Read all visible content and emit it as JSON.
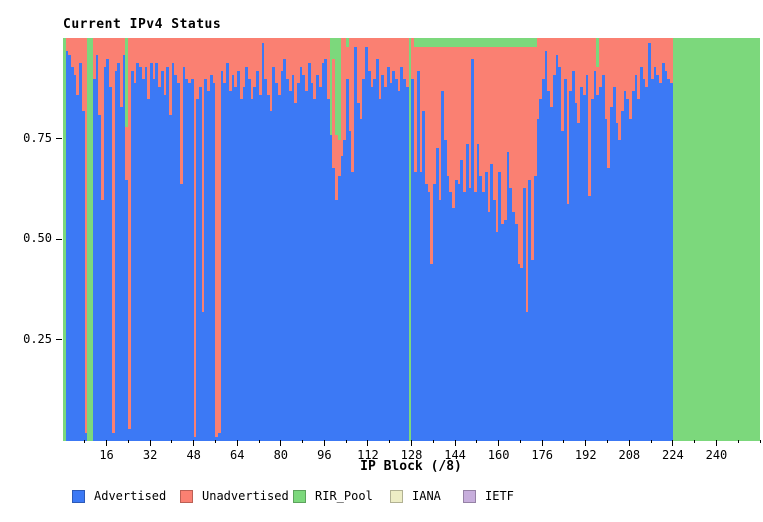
{
  "title": "Current IPv4 Status",
  "colors": {
    "advertised": "#3c79f5",
    "unadvertised": "#fa8072",
    "rir_pool": "#7cd87c",
    "iana": "#ededc5",
    "ietf": "#c7aedc",
    "plot_top_border": "#c9c3da",
    "background": "#ffffff",
    "text": "#000000"
  },
  "legend": [
    {
      "label": "Advertised",
      "color": "#3c79f5"
    },
    {
      "label": "Unadvertised",
      "color": "#fa8072"
    },
    {
      "label": "RIR_Pool",
      "color": "#7cd87c"
    },
    {
      "label": "IANA",
      "color": "#ededc5"
    },
    {
      "label": "IETF",
      "color": "#c7aedc"
    }
  ],
  "chart_data": {
    "type": "bar",
    "stacked": true,
    "title": "Current IPv4 Status",
    "xlabel": "IP Block (/8)",
    "ylabel": "",
    "x_range": [
      0,
      256
    ],
    "y_range": [
      0,
      1
    ],
    "grid": false,
    "legend_position": "bottom",
    "x_tick_values": [
      16,
      32,
      48,
      64,
      80,
      96,
      112,
      128,
      144,
      160,
      176,
      192,
      208,
      224,
      240
    ],
    "x_tick_labels": [
      "16",
      "32",
      "48",
      "64",
      "80",
      "96",
      "112",
      "128",
      "144",
      "160",
      "176",
      "192",
      "208",
      "224",
      "240"
    ],
    "x_minor_tick_values": [
      8,
      24,
      40,
      56,
      72,
      88,
      104,
      120,
      136,
      152,
      168,
      184,
      200,
      216,
      232,
      248,
      256
    ],
    "y_tick_values": [
      0.25,
      0.5,
      0.75
    ],
    "y_tick_labels": [
      "0.25",
      "0.50",
      "0.75"
    ],
    "series_order": [
      "advertised",
      "unadvertised",
      "rir_pool"
    ],
    "note_series_with_zero_visible_area": [
      "iana",
      "ietf"
    ],
    "blocks": [
      [
        0,
        0,
        1
      ],
      [
        0.97,
        0.03,
        0
      ],
      [
        0.96,
        0.04,
        0
      ],
      [
        0.93,
        0.07,
        0
      ],
      [
        0.91,
        0.09,
        0
      ],
      [
        0.86,
        0.14,
        0
      ],
      [
        0.94,
        0.06,
        0
      ],
      [
        0.82,
        0.18,
        0
      ],
      [
        0.02,
        0.98,
        0
      ],
      [
        0,
        0,
        1
      ],
      [
        0,
        0,
        1
      ],
      [
        0.9,
        0.1,
        0
      ],
      [
        0.96,
        0.04,
        0
      ],
      [
        0.81,
        0.19,
        0
      ],
      [
        0.6,
        0.4,
        0
      ],
      [
        0.93,
        0.07,
        0
      ],
      [
        0.95,
        0.05,
        0
      ],
      [
        0.88,
        0.12,
        0
      ],
      [
        0.02,
        0.98,
        0
      ],
      [
        0.92,
        0.08,
        0
      ],
      [
        0.94,
        0.06,
        0
      ],
      [
        0.83,
        0.17,
        0
      ],
      [
        0.96,
        0.04,
        0
      ],
      [
        0.65,
        0.13,
        0.22
      ],
      [
        0.03,
        0.97,
        0
      ],
      [
        0.92,
        0.08,
        0
      ],
      [
        0.89,
        0.11,
        0
      ],
      [
        0.94,
        0.06,
        0
      ],
      [
        0.93,
        0.07,
        0
      ],
      [
        0.9,
        0.1,
        0
      ],
      [
        0.93,
        0.07,
        0
      ],
      [
        0.85,
        0.15,
        0
      ],
      [
        0.94,
        0.06,
        0
      ],
      [
        0.9,
        0.1,
        0
      ],
      [
        0.94,
        0.06,
        0
      ],
      [
        0.88,
        0.12,
        0
      ],
      [
        0.92,
        0.08,
        0
      ],
      [
        0.86,
        0.14,
        0
      ],
      [
        0.93,
        0.07,
        0
      ],
      [
        0.81,
        0.19,
        0
      ],
      [
        0.94,
        0.06,
        0
      ],
      [
        0.91,
        0.09,
        0
      ],
      [
        0.89,
        0.11,
        0
      ],
      [
        0.64,
        0.36,
        0
      ],
      [
        0.93,
        0.07,
        0
      ],
      [
        0.9,
        0.1,
        0
      ],
      [
        0.89,
        0.11,
        0
      ],
      [
        0.9,
        0.1,
        0
      ],
      [
        0.01,
        0.99,
        0
      ],
      [
        0.85,
        0.15,
        0
      ],
      [
        0.88,
        0.12,
        0
      ],
      [
        0.32,
        0.68,
        0
      ],
      [
        0.9,
        0.1,
        0
      ],
      [
        0.87,
        0.13,
        0
      ],
      [
        0.91,
        0.09,
        0
      ],
      [
        0.89,
        0.11,
        0
      ],
      [
        0.01,
        0.99,
        0
      ],
      [
        0.02,
        0.98,
        0
      ],
      [
        0.92,
        0.08,
        0
      ],
      [
        0.89,
        0.11,
        0
      ],
      [
        0.94,
        0.06,
        0
      ],
      [
        0.87,
        0.13,
        0
      ],
      [
        0.91,
        0.09,
        0
      ],
      [
        0.88,
        0.12,
        0
      ],
      [
        0.92,
        0.08,
        0
      ],
      [
        0.85,
        0.15,
        0
      ],
      [
        0.88,
        0.12,
        0
      ],
      [
        0.93,
        0.07,
        0
      ],
      [
        0.9,
        0.1,
        0
      ],
      [
        0.85,
        0.15,
        0
      ],
      [
        0.88,
        0.12,
        0
      ],
      [
        0.92,
        0.08,
        0
      ],
      [
        0.86,
        0.14,
        0
      ],
      [
        0.99,
        0.01,
        0
      ],
      [
        0.9,
        0.1,
        0
      ],
      [
        0.86,
        0.14,
        0
      ],
      [
        0.82,
        0.18,
        0
      ],
      [
        0.93,
        0.07,
        0
      ],
      [
        0.89,
        0.11,
        0
      ],
      [
        0.86,
        0.14,
        0
      ],
      [
        0.92,
        0.08,
        0
      ],
      [
        0.95,
        0.05,
        0
      ],
      [
        0.9,
        0.1,
        0
      ],
      [
        0.87,
        0.13,
        0
      ],
      [
        0.91,
        0.09,
        0
      ],
      [
        0.84,
        0.16,
        0
      ],
      [
        0.89,
        0.11,
        0
      ],
      [
        0.93,
        0.07,
        0
      ],
      [
        0.91,
        0.09,
        0
      ],
      [
        0.87,
        0.13,
        0
      ],
      [
        0.94,
        0.06,
        0
      ],
      [
        0.89,
        0.11,
        0
      ],
      [
        0.85,
        0.15,
        0
      ],
      [
        0.91,
        0.09,
        0
      ],
      [
        0.88,
        0.12,
        0
      ],
      [
        0.94,
        0.06,
        0
      ],
      [
        0.95,
        0.05,
        0
      ],
      [
        0.85,
        0.15,
        0
      ],
      [
        0.76,
        0,
        0.24
      ],
      [
        0.68,
        0.27,
        0.05
      ],
      [
        0.6,
        0.16,
        0.24
      ],
      [
        0.66,
        0.09,
        0.25
      ],
      [
        0.71,
        0.29,
        0
      ],
      [
        0.75,
        0.25,
        0
      ],
      [
        0.9,
        0.08,
        0.02
      ],
      [
        0.77,
        0.23,
        0
      ],
      [
        0.67,
        0.33,
        0
      ],
      [
        0.98,
        0.02,
        0
      ],
      [
        0.84,
        0.16,
        0
      ],
      [
        0.8,
        0.2,
        0
      ],
      [
        0.9,
        0.1,
        0
      ],
      [
        0.98,
        0.02,
        0
      ],
      [
        0.92,
        0.08,
        0
      ],
      [
        0.88,
        0.12,
        0
      ],
      [
        0.9,
        0.1,
        0
      ],
      [
        0.95,
        0.05,
        0
      ],
      [
        0.85,
        0.15,
        0
      ],
      [
        0.91,
        0.09,
        0
      ],
      [
        0.88,
        0.12,
        0
      ],
      [
        0.93,
        0.07,
        0
      ],
      [
        0.89,
        0.11,
        0
      ],
      [
        0.92,
        0.08,
        0
      ],
      [
        0.9,
        0.1,
        0
      ],
      [
        0.87,
        0.13,
        0
      ],
      [
        0.93,
        0.07,
        0
      ],
      [
        0.9,
        0.1,
        0
      ],
      [
        0.88,
        0.12,
        0
      ],
      [
        0,
        0,
        1
      ],
      [
        0.9,
        0.1,
        0
      ],
      [
        0.67,
        0.31,
        0.02
      ],
      [
        0.92,
        0.06,
        0.02
      ],
      [
        0.67,
        0.31,
        0.02
      ],
      [
        0.82,
        0.16,
        0.02
      ],
      [
        0.64,
        0.34,
        0.02
      ],
      [
        0.62,
        0.36,
        0.02
      ],
      [
        0.44,
        0.54,
        0.02
      ],
      [
        0.64,
        0.34,
        0.02
      ],
      [
        0.73,
        0.25,
        0.02
      ],
      [
        0.6,
        0.38,
        0.02
      ],
      [
        0.87,
        0.11,
        0.02
      ],
      [
        0.75,
        0.23,
        0.02
      ],
      [
        0.66,
        0.32,
        0.02
      ],
      [
        0.62,
        0.36,
        0.02
      ],
      [
        0.58,
        0.4,
        0.02
      ],
      [
        0.65,
        0.33,
        0.02
      ],
      [
        0.64,
        0.34,
        0.02
      ],
      [
        0.7,
        0.28,
        0.02
      ],
      [
        0.62,
        0.36,
        0.02
      ],
      [
        0.74,
        0.24,
        0.02
      ],
      [
        0.63,
        0.35,
        0.02
      ],
      [
        0.95,
        0.03,
        0.02
      ],
      [
        0.62,
        0.36,
        0.02
      ],
      [
        0.74,
        0.24,
        0.02
      ],
      [
        0.66,
        0.32,
        0.02
      ],
      [
        0.62,
        0.36,
        0.02
      ],
      [
        0.67,
        0.31,
        0.02
      ],
      [
        0.57,
        0.41,
        0.02
      ],
      [
        0.69,
        0.29,
        0.02
      ],
      [
        0.6,
        0.38,
        0.02
      ],
      [
        0.52,
        0.46,
        0.02
      ],
      [
        0.67,
        0.31,
        0.02
      ],
      [
        0.54,
        0.44,
        0.02
      ],
      [
        0.55,
        0.43,
        0.02
      ],
      [
        0.72,
        0.26,
        0.02
      ],
      [
        0.63,
        0.35,
        0.02
      ],
      [
        0.57,
        0.41,
        0.02
      ],
      [
        0.54,
        0.44,
        0.02
      ],
      [
        0.44,
        0.54,
        0.02
      ],
      [
        0.43,
        0.55,
        0.02
      ],
      [
        0.63,
        0.35,
        0.02
      ],
      [
        0.32,
        0.66,
        0.02
      ],
      [
        0.65,
        0.33,
        0.02
      ],
      [
        0.45,
        0.53,
        0.02
      ],
      [
        0.66,
        0.32,
        0.02
      ],
      [
        0.8,
        0.2,
        0
      ],
      [
        0.85,
        0.15,
        0
      ],
      [
        0.9,
        0.1,
        0
      ],
      [
        0.97,
        0.03,
        0
      ],
      [
        0.87,
        0.13,
        0
      ],
      [
        0.83,
        0.17,
        0
      ],
      [
        0.91,
        0.09,
        0
      ],
      [
        0.96,
        0.04,
        0
      ],
      [
        0.93,
        0.07,
        0
      ],
      [
        0.77,
        0.23,
        0
      ],
      [
        0.9,
        0.1,
        0
      ],
      [
        0.59,
        0.41,
        0
      ],
      [
        0.87,
        0.13,
        0
      ],
      [
        0.92,
        0.08,
        0
      ],
      [
        0.84,
        0.16,
        0
      ],
      [
        0.79,
        0.21,
        0
      ],
      [
        0.88,
        0.12,
        0
      ],
      [
        0.86,
        0.14,
        0
      ],
      [
        0.91,
        0.09,
        0
      ],
      [
        0.61,
        0.39,
        0
      ],
      [
        0.85,
        0.15,
        0
      ],
      [
        0.92,
        0.08,
        0
      ],
      [
        0.86,
        0.07,
        0.07
      ],
      [
        0.88,
        0.12,
        0
      ],
      [
        0.91,
        0.09,
        0
      ],
      [
        0.8,
        0.2,
        0
      ],
      [
        0.68,
        0.32,
        0
      ],
      [
        0.83,
        0.17,
        0
      ],
      [
        0.88,
        0.12,
        0
      ],
      [
        0.79,
        0.21,
        0
      ],
      [
        0.75,
        0.25,
        0
      ],
      [
        0.82,
        0.18,
        0
      ],
      [
        0.87,
        0.13,
        0
      ],
      [
        0.85,
        0.15,
        0
      ],
      [
        0.8,
        0.2,
        0
      ],
      [
        0.87,
        0.13,
        0
      ],
      [
        0.91,
        0.09,
        0
      ],
      [
        0.85,
        0.15,
        0
      ],
      [
        0.93,
        0.07,
        0
      ],
      [
        0.9,
        0.1,
        0
      ],
      [
        0.88,
        0.12,
        0
      ],
      [
        0.99,
        0.01,
        0
      ],
      [
        0.9,
        0.1,
        0
      ],
      [
        0.93,
        0.07,
        0
      ],
      [
        0.91,
        0.09,
        0
      ],
      [
        0.89,
        0.11,
        0
      ],
      [
        0.94,
        0.06,
        0
      ],
      [
        0.92,
        0.08,
        0
      ],
      [
        0.9,
        0.1,
        0
      ],
      [
        0.89,
        0.11,
        0
      ],
      [
        0,
        0,
        1
      ],
      [
        0,
        0,
        1
      ],
      [
        0,
        0,
        1
      ],
      [
        0,
        0,
        1
      ],
      [
        0,
        0,
        1
      ],
      [
        0,
        0,
        1
      ],
      [
        0,
        0,
        1
      ],
      [
        0,
        0,
        1
      ],
      [
        0,
        0,
        1
      ],
      [
        0,
        0,
        1
      ],
      [
        0,
        0,
        1
      ],
      [
        0,
        0,
        1
      ],
      [
        0,
        0,
        1
      ],
      [
        0,
        0,
        1
      ],
      [
        0,
        0,
        1
      ],
      [
        0,
        0,
        1
      ],
      [
        0,
        0,
        1
      ],
      [
        0,
        0,
        1
      ],
      [
        0,
        0,
        1
      ],
      [
        0,
        0,
        1
      ],
      [
        0,
        0,
        1
      ],
      [
        0,
        0,
        1
      ],
      [
        0,
        0,
        1
      ],
      [
        0,
        0,
        1
      ],
      [
        0,
        0,
        1
      ],
      [
        0,
        0,
        1
      ],
      [
        0,
        0,
        1
      ],
      [
        0,
        0,
        1
      ],
      [
        0,
        0,
        1
      ],
      [
        0,
        0,
        1
      ],
      [
        0,
        0,
        1
      ],
      [
        0,
        0,
        1
      ]
    ]
  }
}
